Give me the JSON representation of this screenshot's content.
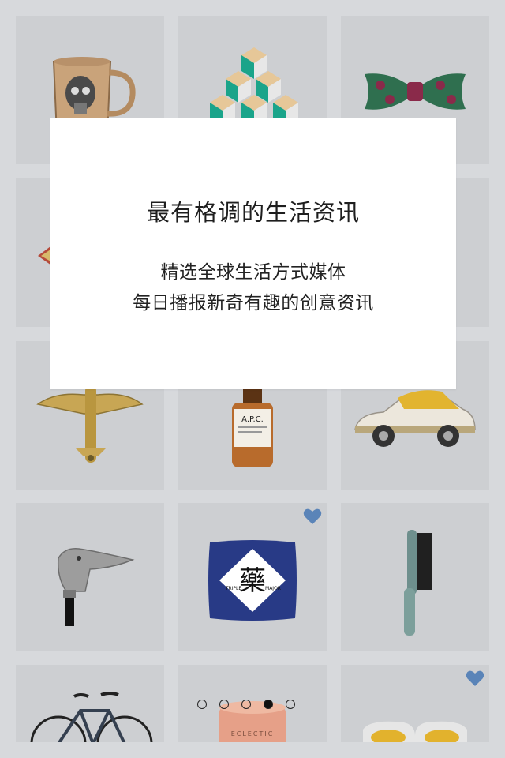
{
  "modal": {
    "title": "最有格调的生活资讯",
    "line1": "精选全球生活方式媒体",
    "line2": "每日播报新奇有趣的创意资讯"
  },
  "grid": {
    "items": [
      {
        "name": "skull-mug",
        "favorited": false
      },
      {
        "name": "cube-stack",
        "favorited": false
      },
      {
        "name": "bow-tie",
        "favorited": false
      },
      {
        "name": "item-4",
        "favorited": false
      },
      {
        "name": "item-5",
        "favorited": false
      },
      {
        "name": "item-6",
        "favorited": false
      },
      {
        "name": "airplane-model",
        "favorited": false
      },
      {
        "name": "apc-bottle",
        "favorited": false
      },
      {
        "name": "vintage-car",
        "favorited": false
      },
      {
        "name": "duck-cane",
        "favorited": false
      },
      {
        "name": "pillow",
        "favorited": true
      },
      {
        "name": "brush",
        "favorited": false
      },
      {
        "name": "bicycle",
        "favorited": false
      },
      {
        "name": "candle",
        "favorited": false
      },
      {
        "name": "sunglasses",
        "favorited": true
      }
    ]
  },
  "product_labels": {
    "bottle": "A.P.C.",
    "pillow_char": "藥",
    "pillow_left": "TRIPLE",
    "pillow_right": "MAJOR",
    "candle": "ECLECTIC"
  },
  "pager": {
    "count": 5,
    "active_index": 3
  },
  "colors": {
    "background": "#d7d9dc",
    "tile": "#cdcfd2",
    "heart": "#5a84b8",
    "modal": "#ffffff"
  }
}
